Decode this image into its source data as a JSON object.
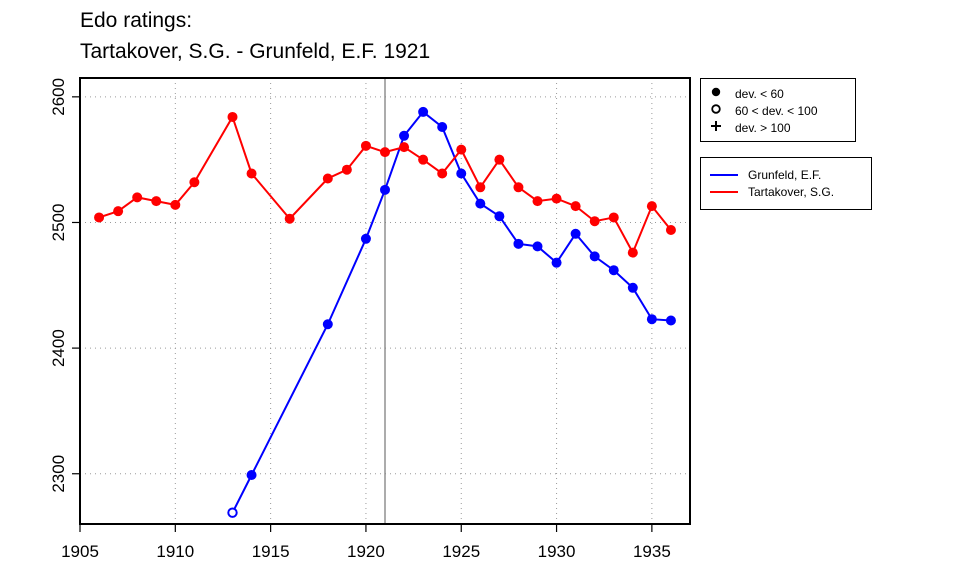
{
  "title": {
    "line1": "Edo ratings:",
    "line2": "Tartakover, S.G. - Grunfeld, E.F. 1921"
  },
  "legend_devs": [
    {
      "icon": "filled-circle-icon",
      "label": "dev. < 60"
    },
    {
      "icon": "open-circle-icon",
      "label": "60 < dev. < 100"
    },
    {
      "icon": "plus-icon",
      "label": "dev. > 100"
    }
  ],
  "chart_data": {
    "type": "line",
    "title": "Edo ratings:\nTartakover, S.G. - Grunfeld, E.F. 1921",
    "xlabel": "",
    "ylabel": "",
    "xlim": [
      1905,
      1937
    ],
    "ylim": [
      2260,
      2615
    ],
    "xticks": [
      1905,
      1910,
      1915,
      1920,
      1925,
      1930,
      1935
    ],
    "yticks": [
      2300,
      2400,
      2500,
      2600
    ],
    "grid": true,
    "vline": 1921,
    "legend_position": "right, outside plot",
    "series": [
      {
        "name": "Grunfeld, E.F.",
        "color": "#0000ff",
        "points": [
          {
            "x": 1913,
            "y": 2269,
            "marker": "open"
          },
          {
            "x": 1914,
            "y": 2299,
            "marker": "filled"
          },
          {
            "x": 1918,
            "y": 2419,
            "marker": "filled"
          },
          {
            "x": 1920,
            "y": 2487,
            "marker": "filled"
          },
          {
            "x": 1921,
            "y": 2526,
            "marker": "filled"
          },
          {
            "x": 1922,
            "y": 2569,
            "marker": "filled"
          },
          {
            "x": 1923,
            "y": 2588,
            "marker": "filled"
          },
          {
            "x": 1924,
            "y": 2576,
            "marker": "filled"
          },
          {
            "x": 1925,
            "y": 2539,
            "marker": "filled"
          },
          {
            "x": 1926,
            "y": 2515,
            "marker": "filled"
          },
          {
            "x": 1927,
            "y": 2505,
            "marker": "filled"
          },
          {
            "x": 1928,
            "y": 2483,
            "marker": "filled"
          },
          {
            "x": 1929,
            "y": 2481,
            "marker": "filled"
          },
          {
            "x": 1930,
            "y": 2468,
            "marker": "filled"
          },
          {
            "x": 1931,
            "y": 2491,
            "marker": "filled"
          },
          {
            "x": 1932,
            "y": 2473,
            "marker": "filled"
          },
          {
            "x": 1933,
            "y": 2462,
            "marker": "filled"
          },
          {
            "x": 1934,
            "y": 2448,
            "marker": "filled"
          },
          {
            "x": 1935,
            "y": 2423,
            "marker": "filled"
          },
          {
            "x": 1936,
            "y": 2422,
            "marker": "filled"
          }
        ]
      },
      {
        "name": "Tartakover, S.G.",
        "color": "#ff0000",
        "points": [
          {
            "x": 1906,
            "y": 2504,
            "marker": "filled"
          },
          {
            "x": 1907,
            "y": 2509,
            "marker": "filled"
          },
          {
            "x": 1908,
            "y": 2520,
            "marker": "filled"
          },
          {
            "x": 1909,
            "y": 2517,
            "marker": "filled"
          },
          {
            "x": 1910,
            "y": 2514,
            "marker": "filled"
          },
          {
            "x": 1911,
            "y": 2532,
            "marker": "filled"
          },
          {
            "x": 1913,
            "y": 2584,
            "marker": "filled"
          },
          {
            "x": 1914,
            "y": 2539,
            "marker": "filled"
          },
          {
            "x": 1916,
            "y": 2503,
            "marker": "filled"
          },
          {
            "x": 1918,
            "y": 2535,
            "marker": "filled"
          },
          {
            "x": 1919,
            "y": 2542,
            "marker": "filled"
          },
          {
            "x": 1920,
            "y": 2561,
            "marker": "filled"
          },
          {
            "x": 1921,
            "y": 2556,
            "marker": "filled"
          },
          {
            "x": 1922,
            "y": 2560,
            "marker": "filled"
          },
          {
            "x": 1923,
            "y": 2550,
            "marker": "filled"
          },
          {
            "x": 1924,
            "y": 2539,
            "marker": "filled"
          },
          {
            "x": 1925,
            "y": 2558,
            "marker": "filled"
          },
          {
            "x": 1926,
            "y": 2528,
            "marker": "filled"
          },
          {
            "x": 1927,
            "y": 2550,
            "marker": "filled"
          },
          {
            "x": 1928,
            "y": 2528,
            "marker": "filled"
          },
          {
            "x": 1929,
            "y": 2517,
            "marker": "filled"
          },
          {
            "x": 1930,
            "y": 2519,
            "marker": "filled"
          },
          {
            "x": 1931,
            "y": 2513,
            "marker": "filled"
          },
          {
            "x": 1932,
            "y": 2501,
            "marker": "filled"
          },
          {
            "x": 1933,
            "y": 2504,
            "marker": "filled"
          },
          {
            "x": 1934,
            "y": 2476,
            "marker": "filled"
          },
          {
            "x": 1935,
            "y": 2513,
            "marker": "filled"
          },
          {
            "x": 1936,
            "y": 2494,
            "marker": "filled"
          }
        ]
      }
    ]
  }
}
